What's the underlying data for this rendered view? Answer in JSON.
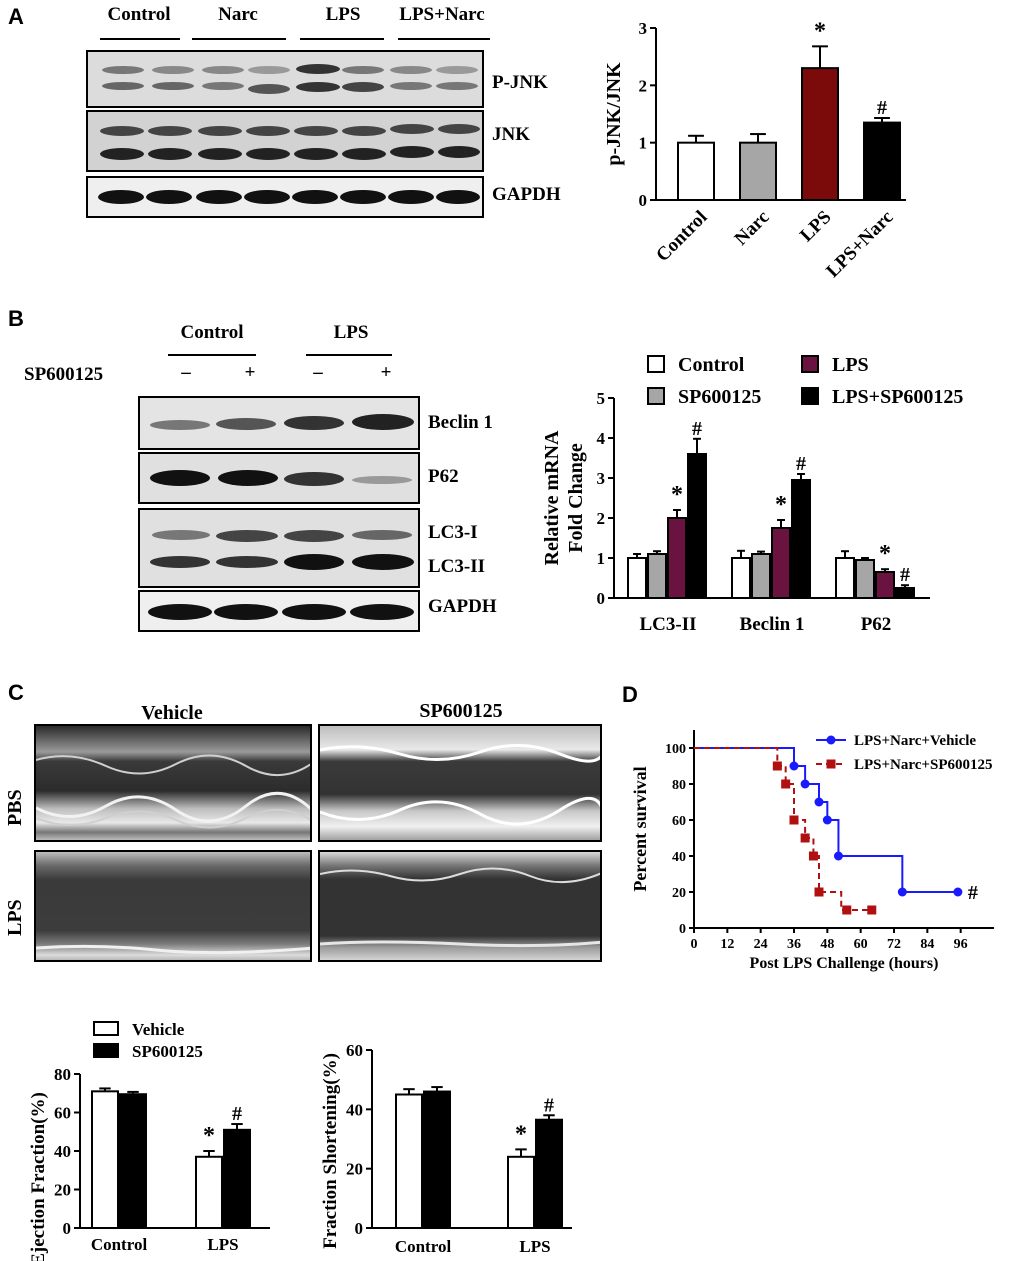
{
  "panels": {
    "A": "A",
    "B": "B",
    "C": "C",
    "D": "D"
  },
  "panelA": {
    "groups": [
      "Control",
      "Narc",
      "LPS",
      "LPS+Narc"
    ],
    "blot_labels": [
      "P-JNK",
      "JNK",
      "GAPDH"
    ]
  },
  "panelB": {
    "groups": [
      "Control",
      "LPS"
    ],
    "treatment_label": "SP600125",
    "treatment_signs": [
      "–",
      "+",
      "–",
      "+"
    ],
    "blot_labels": [
      "Beclin 1",
      "P62",
      "LC3-I",
      "LC3-II",
      "GAPDH"
    ]
  },
  "panelC": {
    "column_titles": [
      "Vehicle",
      "SP600125"
    ],
    "row_labels": [
      "PBS",
      "LPS"
    ]
  },
  "chart_data": [
    {
      "id": "pjnk",
      "type": "bar",
      "title": "",
      "xlabel": "",
      "ylabel": "p-JNK/JNK",
      "categories": [
        "Control",
        "Narc",
        "LPS",
        "LPS+Narc"
      ],
      "values": [
        1.0,
        1.0,
        2.3,
        1.35
      ],
      "errors": [
        0.12,
        0.15,
        0.38,
        0.08
      ],
      "annotations": [
        "",
        "",
        "*",
        "#"
      ],
      "colors": [
        "#ffffff",
        "#a6a6a6",
        "#7b0a0a",
        "#000000"
      ],
      "ylim": [
        0,
        3
      ],
      "yticks": [
        0,
        1,
        2,
        3
      ]
    },
    {
      "id": "mrna",
      "type": "bar",
      "title": "",
      "xlabel": "",
      "ylabel": "Relative mRNA Fold Change",
      "ylabel_lines": [
        "Relative mRNA",
        "Fold Change"
      ],
      "categories": [
        "LC3-II",
        "Beclin 1",
        "P62"
      ],
      "series": [
        {
          "name": "Control",
          "color": "#ffffff",
          "values": [
            1.0,
            1.0,
            1.0
          ],
          "errors": [
            0.1,
            0.18,
            0.17
          ],
          "annotations": [
            "",
            "",
            ""
          ]
        },
        {
          "name": "SP600125",
          "color": "#a6a6a6",
          "values": [
            1.1,
            1.1,
            0.95
          ],
          "errors": [
            0.07,
            0.06,
            0.05
          ],
          "annotations": [
            "",
            "",
            ""
          ]
        },
        {
          "name": "LPS",
          "color": "#6a1240",
          "values": [
            2.0,
            1.75,
            0.65
          ],
          "errors": [
            0.2,
            0.2,
            0.07
          ],
          "annotations": [
            "*",
            "*",
            "*"
          ]
        },
        {
          "name": "LPS+SP600125",
          "color": "#000000",
          "values": [
            3.6,
            2.95,
            0.25
          ],
          "errors": [
            0.38,
            0.15,
            0.07
          ],
          "annotations": [
            "#",
            "#",
            "#"
          ]
        }
      ],
      "ylim": [
        0,
        5
      ],
      "yticks": [
        0,
        1,
        2,
        3,
        4,
        5
      ],
      "legend": "top"
    },
    {
      "id": "ef",
      "type": "bar",
      "title": "",
      "xlabel": "",
      "ylabel": "Ejection Fraction(%)",
      "categories": [
        "Control",
        "LPS"
      ],
      "series": [
        {
          "name": "Vehicle",
          "color": "#ffffff",
          "values": [
            71,
            37
          ],
          "errors": [
            1.5,
            3
          ],
          "annotations": [
            "",
            "*"
          ]
        },
        {
          "name": "SP600125",
          "color": "#000000",
          "values": [
            69.5,
            51
          ],
          "errors": [
            1.2,
            3
          ],
          "annotations": [
            "",
            "#"
          ]
        }
      ],
      "ylim": [
        0,
        80
      ],
      "yticks": [
        0,
        20,
        40,
        60,
        80
      ],
      "legend": "top-left"
    },
    {
      "id": "fs",
      "type": "bar",
      "title": "",
      "xlabel": "",
      "ylabel": "Fraction Shortening(%)",
      "categories": [
        "Control",
        "LPS"
      ],
      "series": [
        {
          "name": "Vehicle",
          "color": "#ffffff",
          "values": [
            45,
            24
          ],
          "errors": [
            1.8,
            2.5
          ],
          "annotations": [
            "",
            "*"
          ]
        },
        {
          "name": "SP600125",
          "color": "#000000",
          "values": [
            46,
            36.5
          ],
          "errors": [
            1.5,
            1.5
          ],
          "annotations": [
            "",
            "#"
          ]
        }
      ],
      "ylim": [
        0,
        60
      ],
      "yticks": [
        0,
        20,
        40,
        60
      ]
    },
    {
      "id": "survival",
      "type": "line",
      "title": "",
      "xlabel": "Post LPS Challenge (hours)",
      "ylabel": "Percent survival",
      "xlim": [
        0,
        108
      ],
      "xticks": [
        0,
        12,
        24,
        36,
        48,
        60,
        72,
        84,
        96
      ],
      "ylim": [
        0,
        110
      ],
      "yticks": [
        0,
        20,
        40,
        60,
        80,
        100
      ],
      "legend": "top-right",
      "series": [
        {
          "name": "LPS+Narc+Vehicle",
          "color": "#1a1aff",
          "style": "solid",
          "marker": "circle",
          "steps": [
            [
              0,
              100
            ],
            [
              36,
              90
            ],
            [
              40,
              80
            ],
            [
              45,
              70
            ],
            [
              48,
              60
            ],
            [
              52,
              40
            ],
            [
              75,
              20
            ],
            [
              95,
              20
            ]
          ],
          "markers": [
            [
              36,
              90
            ],
            [
              40,
              80
            ],
            [
              45,
              70
            ],
            [
              48,
              60
            ],
            [
              52,
              40
            ],
            [
              75,
              20
            ],
            [
              95,
              20
            ]
          ],
          "annotation": "#"
        },
        {
          "name": "LPS+Narc+SP600125",
          "color": "#b01010",
          "style": "dashed",
          "marker": "square",
          "steps": [
            [
              0,
              100
            ],
            [
              30,
              90
            ],
            [
              33,
              80
            ],
            [
              36,
              60
            ],
            [
              40,
              50
            ],
            [
              43,
              40
            ],
            [
              45,
              20
            ],
            [
              53,
              10
            ],
            [
              64,
              10
            ]
          ],
          "markers": [
            [
              30,
              90
            ],
            [
              33,
              80
            ],
            [
              36,
              60
            ],
            [
              40,
              50
            ],
            [
              43,
              40
            ],
            [
              45,
              20
            ],
            [
              55,
              10
            ],
            [
              64,
              10
            ]
          ]
        }
      ]
    }
  ]
}
